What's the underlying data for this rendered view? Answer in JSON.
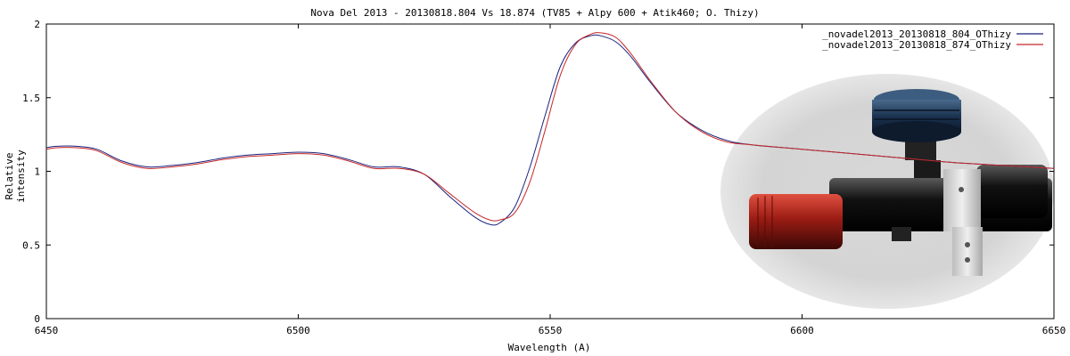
{
  "chart_data": {
    "type": "line",
    "title": "Nova Del 2013 - 20130818.804 Vs 18.874 (TV85 + Alpy 600 + Atik460; O. Thizy)",
    "xlabel": "Wavelength (A)",
    "ylabel": "Relative intensity",
    "xlim": [
      6450,
      6650
    ],
    "ylim": [
      0,
      2
    ],
    "xticks": [
      6450,
      6500,
      6550,
      6600,
      6650
    ],
    "yticks": [
      0,
      0.5,
      1,
      1.5,
      2
    ],
    "ytick_labels": [
      "0",
      "0.5",
      "1",
      "1.5",
      "2"
    ],
    "grid": false,
    "legend_position": "top-right",
    "series": [
      {
        "name": "_novadel2013_20130818_804_OThizy",
        "color": "#1a237e",
        "x": [
          6450,
          6452,
          6456,
          6460,
          6465,
          6470,
          6475,
          6480,
          6485,
          6490,
          6495,
          6500,
          6505,
          6510,
          6515,
          6520,
          6525,
          6530,
          6535,
          6538,
          6540,
          6543,
          6546,
          6549,
          6552,
          6555,
          6558,
          6560,
          6563,
          6566,
          6570,
          6575,
          6580,
          6585,
          6590,
          6600,
          6610,
          6620,
          6630,
          6640,
          6650
        ],
        "y": [
          1.16,
          1.17,
          1.17,
          1.15,
          1.07,
          1.03,
          1.04,
          1.06,
          1.09,
          1.11,
          1.12,
          1.13,
          1.12,
          1.08,
          1.03,
          1.03,
          0.98,
          0.83,
          0.69,
          0.64,
          0.65,
          0.76,
          1.03,
          1.38,
          1.71,
          1.87,
          1.92,
          1.92,
          1.88,
          1.78,
          1.6,
          1.4,
          1.28,
          1.21,
          1.18,
          1.15,
          1.12,
          1.09,
          1.06,
          1.04,
          1.02
        ]
      },
      {
        "name": "_novadel2013_20130818_874_OThizy",
        "color": "#c62828",
        "x": [
          6450,
          6452,
          6456,
          6460,
          6465,
          6470,
          6475,
          6480,
          6485,
          6490,
          6495,
          6500,
          6505,
          6510,
          6515,
          6520,
          6525,
          6530,
          6535,
          6538,
          6540,
          6543,
          6546,
          6549,
          6552,
          6555,
          6558,
          6560,
          6563,
          6566,
          6570,
          6575,
          6580,
          6585,
          6590,
          6600,
          6610,
          6620,
          6630,
          6640,
          6650
        ],
        "y": [
          1.15,
          1.16,
          1.16,
          1.14,
          1.06,
          1.02,
          1.03,
          1.05,
          1.08,
          1.1,
          1.11,
          1.12,
          1.11,
          1.07,
          1.02,
          1.02,
          0.98,
          0.85,
          0.72,
          0.67,
          0.67,
          0.72,
          0.93,
          1.28,
          1.65,
          1.86,
          1.93,
          1.94,
          1.91,
          1.8,
          1.61,
          1.4,
          1.27,
          1.2,
          1.18,
          1.15,
          1.12,
          1.09,
          1.06,
          1.04,
          1.02
        ]
      }
    ]
  },
  "photo": {
    "alt_icon": "camera-spectrograph-photo"
  }
}
